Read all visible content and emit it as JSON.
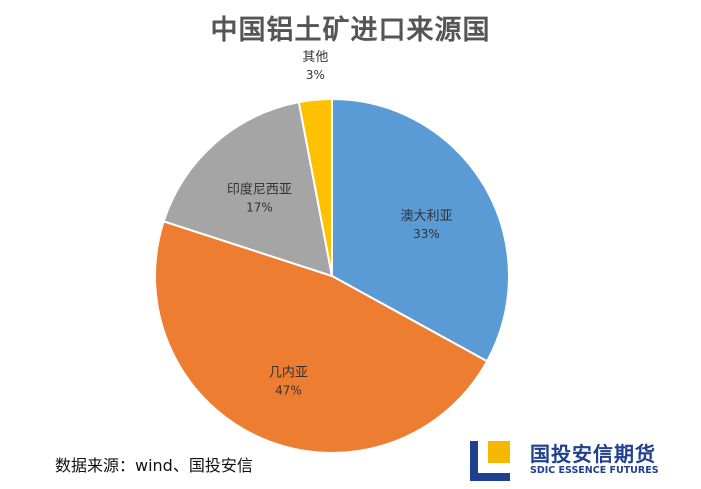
{
  "chart_data": {
    "type": "pie",
    "title": "中国铝土矿进口来源国",
    "categories": [
      "澳大利亚",
      "几内亚",
      "印度尼西亚",
      "其他"
    ],
    "values": [
      33,
      47,
      17,
      3
    ],
    "value_labels": [
      "33%",
      "47%",
      "17%",
      "3%"
    ],
    "colors": [
      "#5b9bd5",
      "#ed7d31",
      "#a5a5a5",
      "#ffc000"
    ],
    "start": "12 o'clock",
    "direction": "clockwise",
    "legend": "none",
    "data_labels": "category and percent"
  },
  "footer": {
    "source": "数据来源：wind、国投安信"
  },
  "brand": {
    "name_cn": "国投安信期货",
    "name_en": "SDIC ESSENCE FUTURES",
    "logo_colors": [
      "#1f3f8f",
      "#f5b800"
    ]
  }
}
